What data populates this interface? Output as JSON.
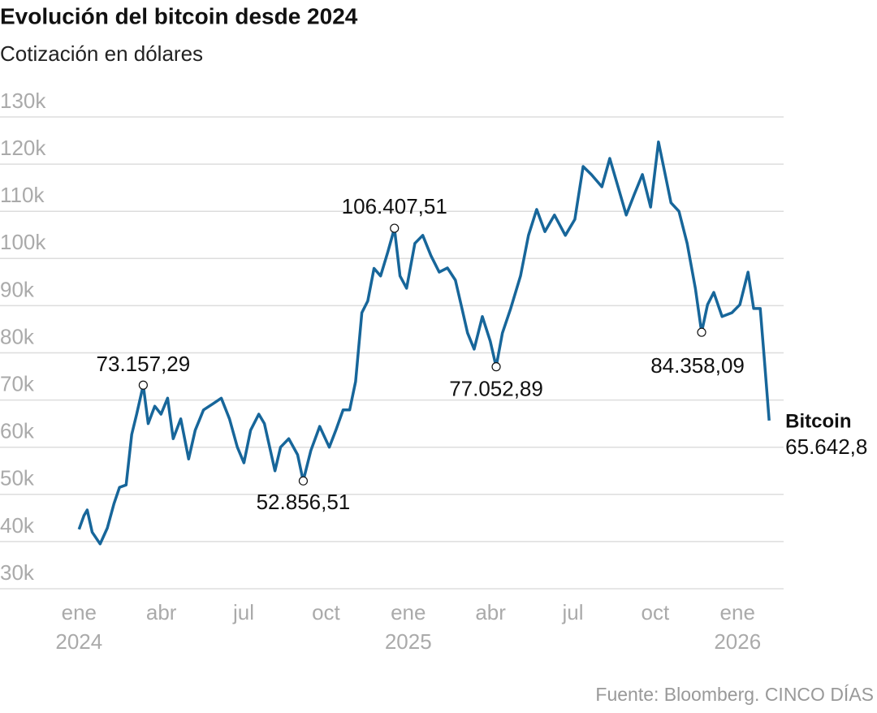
{
  "chart_data": {
    "type": "line",
    "title": "Evolución del bitcoin desde 2024",
    "subtitle": "Cotización en dólares",
    "source": "Fuente: Bloomberg. CINCO DÍAS",
    "x": [
      2024.0,
      2024.015,
      2024.025,
      2024.04,
      2024.064,
      2024.086,
      2024.106,
      2024.123,
      2024.143,
      2024.16,
      2024.175,
      2024.195,
      2024.21,
      2024.23,
      2024.249,
      2024.269,
      2024.286,
      2024.309,
      2024.333,
      2024.353,
      2024.378,
      2024.407,
      2024.432,
      2024.457,
      2024.481,
      2024.501,
      2024.521,
      2024.546,
      2024.563,
      2024.595,
      2024.612,
      2024.637,
      2024.664,
      2024.681,
      2024.704,
      2024.731,
      2024.76,
      2024.78,
      2024.802,
      2024.822,
      2024.84,
      2024.859,
      2024.877,
      2024.896,
      2024.916,
      2024.938,
      2024.958,
      2024.975,
      2024.995,
      2025.02,
      2025.044,
      2025.069,
      2025.094,
      2025.119,
      2025.143,
      2025.163,
      2025.18,
      2025.2,
      2025.225,
      2025.249,
      2025.267,
      2025.286,
      2025.311,
      2025.341,
      2025.365,
      2025.39,
      2025.415,
      2025.444,
      2025.477,
      2025.506,
      2025.531,
      2025.556,
      2025.588,
      2025.612,
      2025.637,
      2025.662,
      2025.686,
      2025.711,
      2025.736,
      2025.76,
      2025.778,
      2025.798,
      2025.822,
      2025.847,
      2025.872,
      2025.891,
      2025.909,
      2025.928,
      2025.953,
      2025.983,
      2026.007,
      2026.032,
      2026.049,
      2026.069,
      2026.081,
      2026.096
    ],
    "series": [
      {
        "name": "Bitcoin",
        "color": "#17669a",
        "values": [
          42600,
          45500,
          46700,
          42000,
          39500,
          42900,
          48000,
          51500,
          52000,
          62700,
          67000,
          73157.29,
          65000,
          68700,
          67000,
          70400,
          61800,
          66000,
          57500,
          63600,
          67900,
          69200,
          70400,
          66000,
          60000,
          56700,
          63600,
          67000,
          65000,
          55000,
          60000,
          61800,
          58400,
          52856.51,
          59300,
          64400,
          60000,
          63600,
          67900,
          67900,
          73900,
          88500,
          91000,
          97900,
          96300,
          101400,
          106407.51,
          96300,
          93700,
          103200,
          104900,
          100600,
          97100,
          98000,
          95400,
          89400,
          84200,
          80800,
          87700,
          82500,
          77052.89,
          84200,
          89400,
          96300,
          104900,
          110400,
          105700,
          109200,
          104900,
          108300,
          119500,
          117800,
          115200,
          121200,
          115200,
          109200,
          113500,
          117800,
          110900,
          124700,
          118600,
          111800,
          110000,
          103200,
          93700,
          84358.09,
          90200,
          92800,
          87700,
          88500,
          90200,
          97100,
          89400,
          89400,
          79000,
          65642.8
        ]
      }
    ],
    "annotations": [
      {
        "x": 2024.195,
        "value": 73157.29,
        "label": "73.157,29"
      },
      {
        "x": 2024.681,
        "value": 52856.51,
        "label": "52.856,51"
      },
      {
        "x": 2024.958,
        "value": 106407.51,
        "label": "106.407,51"
      },
      {
        "x": 2025.267,
        "value": 77052.89,
        "label": "77.052,89"
      },
      {
        "x": 2025.891,
        "value": 84358.09,
        "label": "84.358,09"
      },
      {
        "x": 2026.096,
        "value": 65642.8,
        "label": "65.642,8"
      }
    ],
    "xlim": [
      2023.76,
      2026.14
    ],
    "xticks": [
      {
        "value": 2024,
        "label": "ene",
        "year": "2024"
      },
      {
        "value": 2024.25,
        "label": "abr"
      },
      {
        "value": 2024.5,
        "label": "jul"
      },
      {
        "value": 2024.75,
        "label": "oct"
      },
      {
        "value": 2025,
        "label": "ene",
        "year": "2025"
      },
      {
        "value": 2025.25,
        "label": "abr"
      },
      {
        "value": 2025.5,
        "label": "jul"
      },
      {
        "value": 2025.75,
        "label": "oct"
      },
      {
        "value": 2026,
        "label": "ene",
        "year": "2026"
      }
    ],
    "ylim": [
      30000,
      130000
    ],
    "yticks": [
      {
        "value": 30000,
        "label": "30k"
      },
      {
        "value": 40000,
        "label": "40k"
      },
      {
        "value": 50000,
        "label": "50k"
      },
      {
        "value": 60000,
        "label": "60k"
      },
      {
        "value": 70000,
        "label": "70k"
      },
      {
        "value": 80000,
        "label": "80k"
      },
      {
        "value": 90000,
        "label": "90k"
      },
      {
        "value": 100000,
        "label": "100k"
      },
      {
        "value": 110000,
        "label": "110k"
      },
      {
        "value": 120000,
        "label": "120k"
      },
      {
        "value": 130000,
        "label": "130k"
      }
    ],
    "grid": true
  }
}
